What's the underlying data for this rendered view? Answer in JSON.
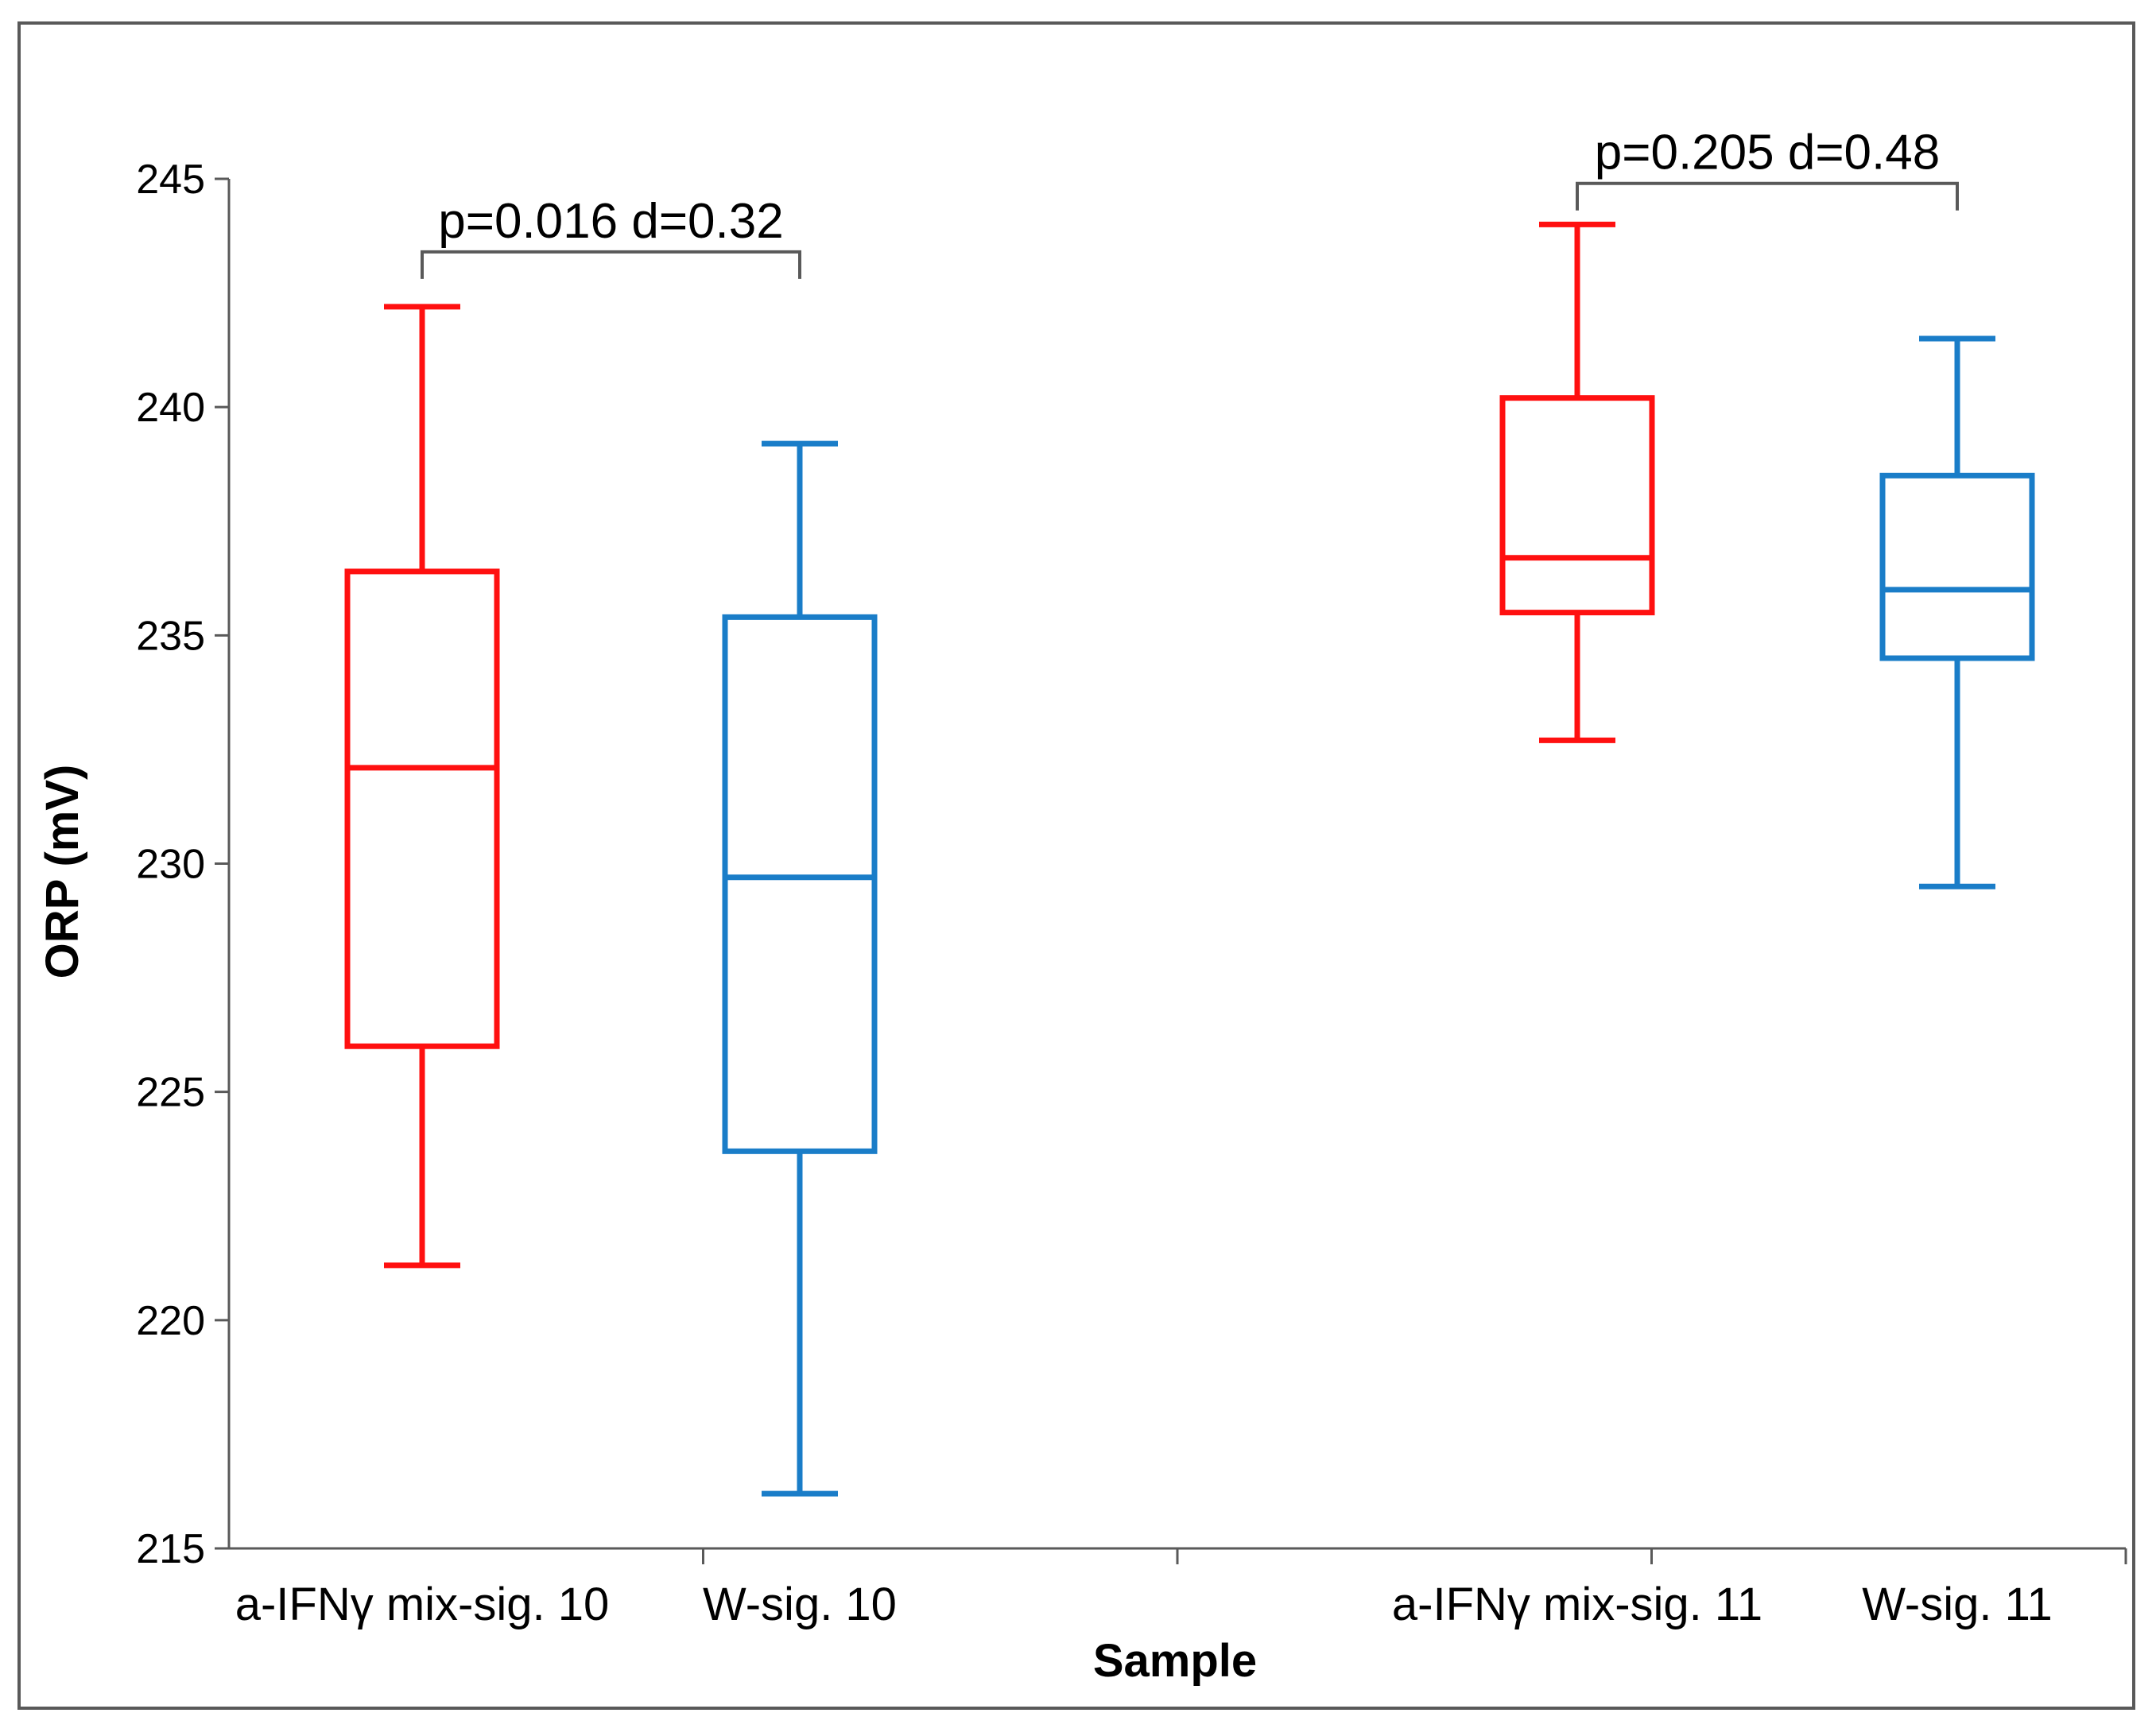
{
  "chart_data": {
    "type": "boxplot",
    "title": "",
    "xlabel": "Sample",
    "ylabel": "ORP (mV)",
    "ylim": [
      215,
      245
    ],
    "yticks": [
      215,
      220,
      225,
      230,
      235,
      240,
      245
    ],
    "groups": [
      "sig. 10",
      "sig. 11"
    ],
    "categories": [
      "a-IFNγ mix-sig. 10",
      "W-sig. 10",
      "a-IFNγ mix-sig. 11",
      "W-sig. 11"
    ],
    "boxes": [
      {
        "label": "a-IFNγ mix-sig. 10",
        "min": 221.2,
        "q1": 226.0,
        "median": 232.1,
        "q3": 236.4,
        "max": 242.2,
        "color": "#ff1010"
      },
      {
        "label": "W-sig. 10",
        "min": 216.2,
        "q1": 223.7,
        "median": 229.7,
        "q3": 235.4,
        "max": 239.2,
        "color": "#1a7dc8"
      },
      {
        "label": "a-IFNγ mix-sig. 11",
        "min": 232.7,
        "q1": 235.5,
        "median": 236.7,
        "q3": 240.2,
        "max": 244.0,
        "color": "#ff1010"
      },
      {
        "label": "W-sig. 11",
        "min": 229.5,
        "q1": 234.5,
        "median": 236.0,
        "q3": 238.5,
        "max": 241.5,
        "color": "#1a7dc8"
      }
    ],
    "annotations": [
      {
        "text": "p=0.016  d=0.32",
        "from": 0,
        "to": 1,
        "bracket_y": 243.4
      },
      {
        "text": "p=0.205  d=0.48",
        "from": 2,
        "to": 3,
        "bracket_y": 244.9
      }
    ],
    "grid": false,
    "legend": "none"
  }
}
